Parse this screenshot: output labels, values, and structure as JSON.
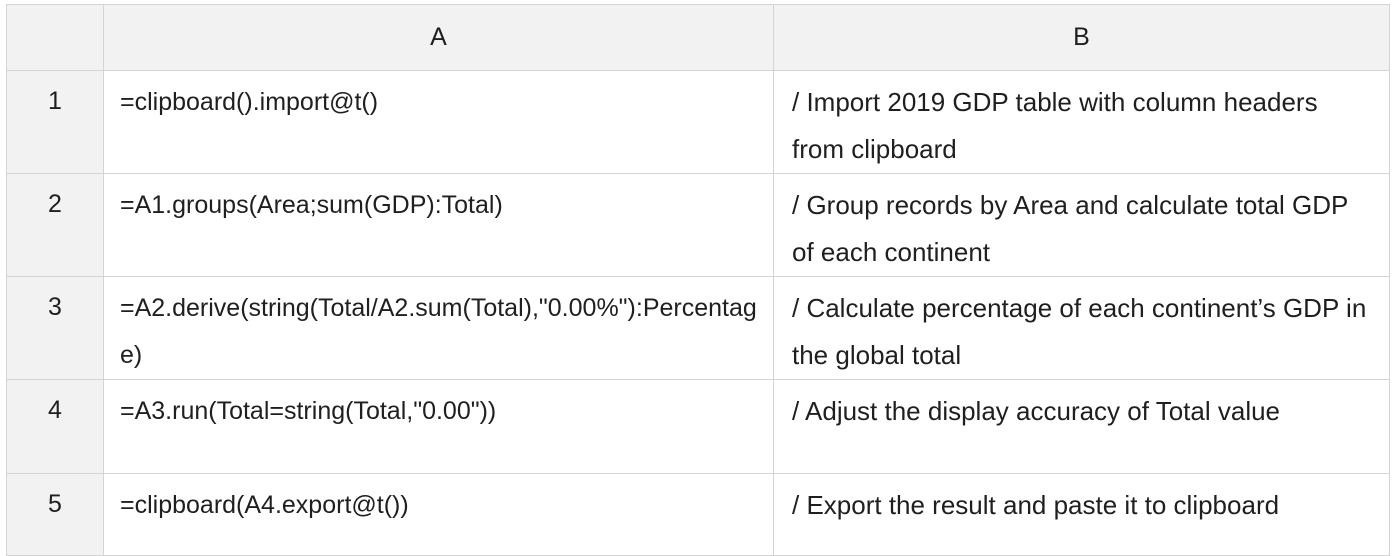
{
  "columns": {
    "corner": "",
    "a": "A",
    "b": "B"
  },
  "rows": [
    {
      "num": "1",
      "a": "=clipboard().import@t()",
      "b": "/ Import 2019 GDP table with column headers from clipboard"
    },
    {
      "num": "2",
      "a": "=A1.groups(Area;sum(GDP):Total)",
      "b": "/ Group records by Area and calculate total GDP of each continent"
    },
    {
      "num": "3",
      "a": "=A2.derive(string(Total/A2.sum(Total),\"0.00%\"):Percentage)",
      "b": "/ Calculate percentage of each continent’s GDP in the global total"
    },
    {
      "num": "4",
      "a": "=A3.run(Total=string(Total,\"0.00\"))",
      "b": "/ Adjust the display accuracy of Total value"
    },
    {
      "num": "5",
      "a": "=clipboard(A4.export@t())",
      "b": "/ Export the result and paste it to clipboard"
    }
  ],
  "colors": {
    "header_bg": "#f2f2f2",
    "grid_line": "#d4d4d4",
    "text": "#1f1f1f"
  }
}
